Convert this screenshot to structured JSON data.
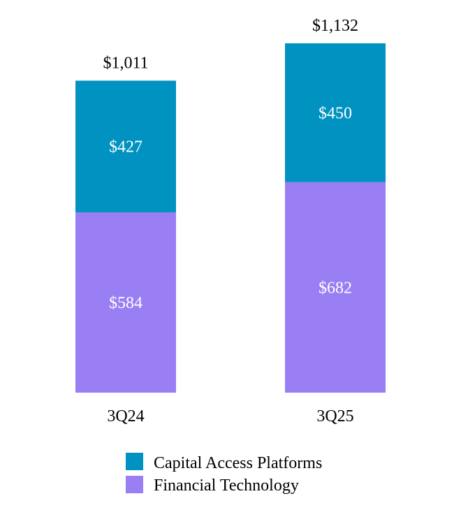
{
  "chart_data": {
    "type": "bar",
    "stacked": true,
    "title": "",
    "xlabel": "",
    "ylabel": "",
    "categories": [
      "3Q24",
      "3Q25"
    ],
    "series": [
      {
        "name": "Financial Technology",
        "color": "#9A7EF4",
        "values": [
          584,
          682
        ],
        "labels": [
          "$584",
          "$682"
        ]
      },
      {
        "name": "Capital Access Platforms",
        "color": "#0092C0",
        "values": [
          427,
          450
        ],
        "labels": [
          "$427",
          "$450"
        ]
      }
    ],
    "totals": [
      1011,
      1132
    ],
    "total_labels": [
      "$1,011",
      "$1,132"
    ],
    "ylim": [
      0,
      1132
    ],
    "grid": false,
    "legend": {
      "placement": "bottom",
      "entries": [
        {
          "label": "Capital Access Platforms",
          "color": "#0092C0"
        },
        {
          "label": "Financial Technology",
          "color": "#9A7EF4"
        }
      ]
    }
  }
}
